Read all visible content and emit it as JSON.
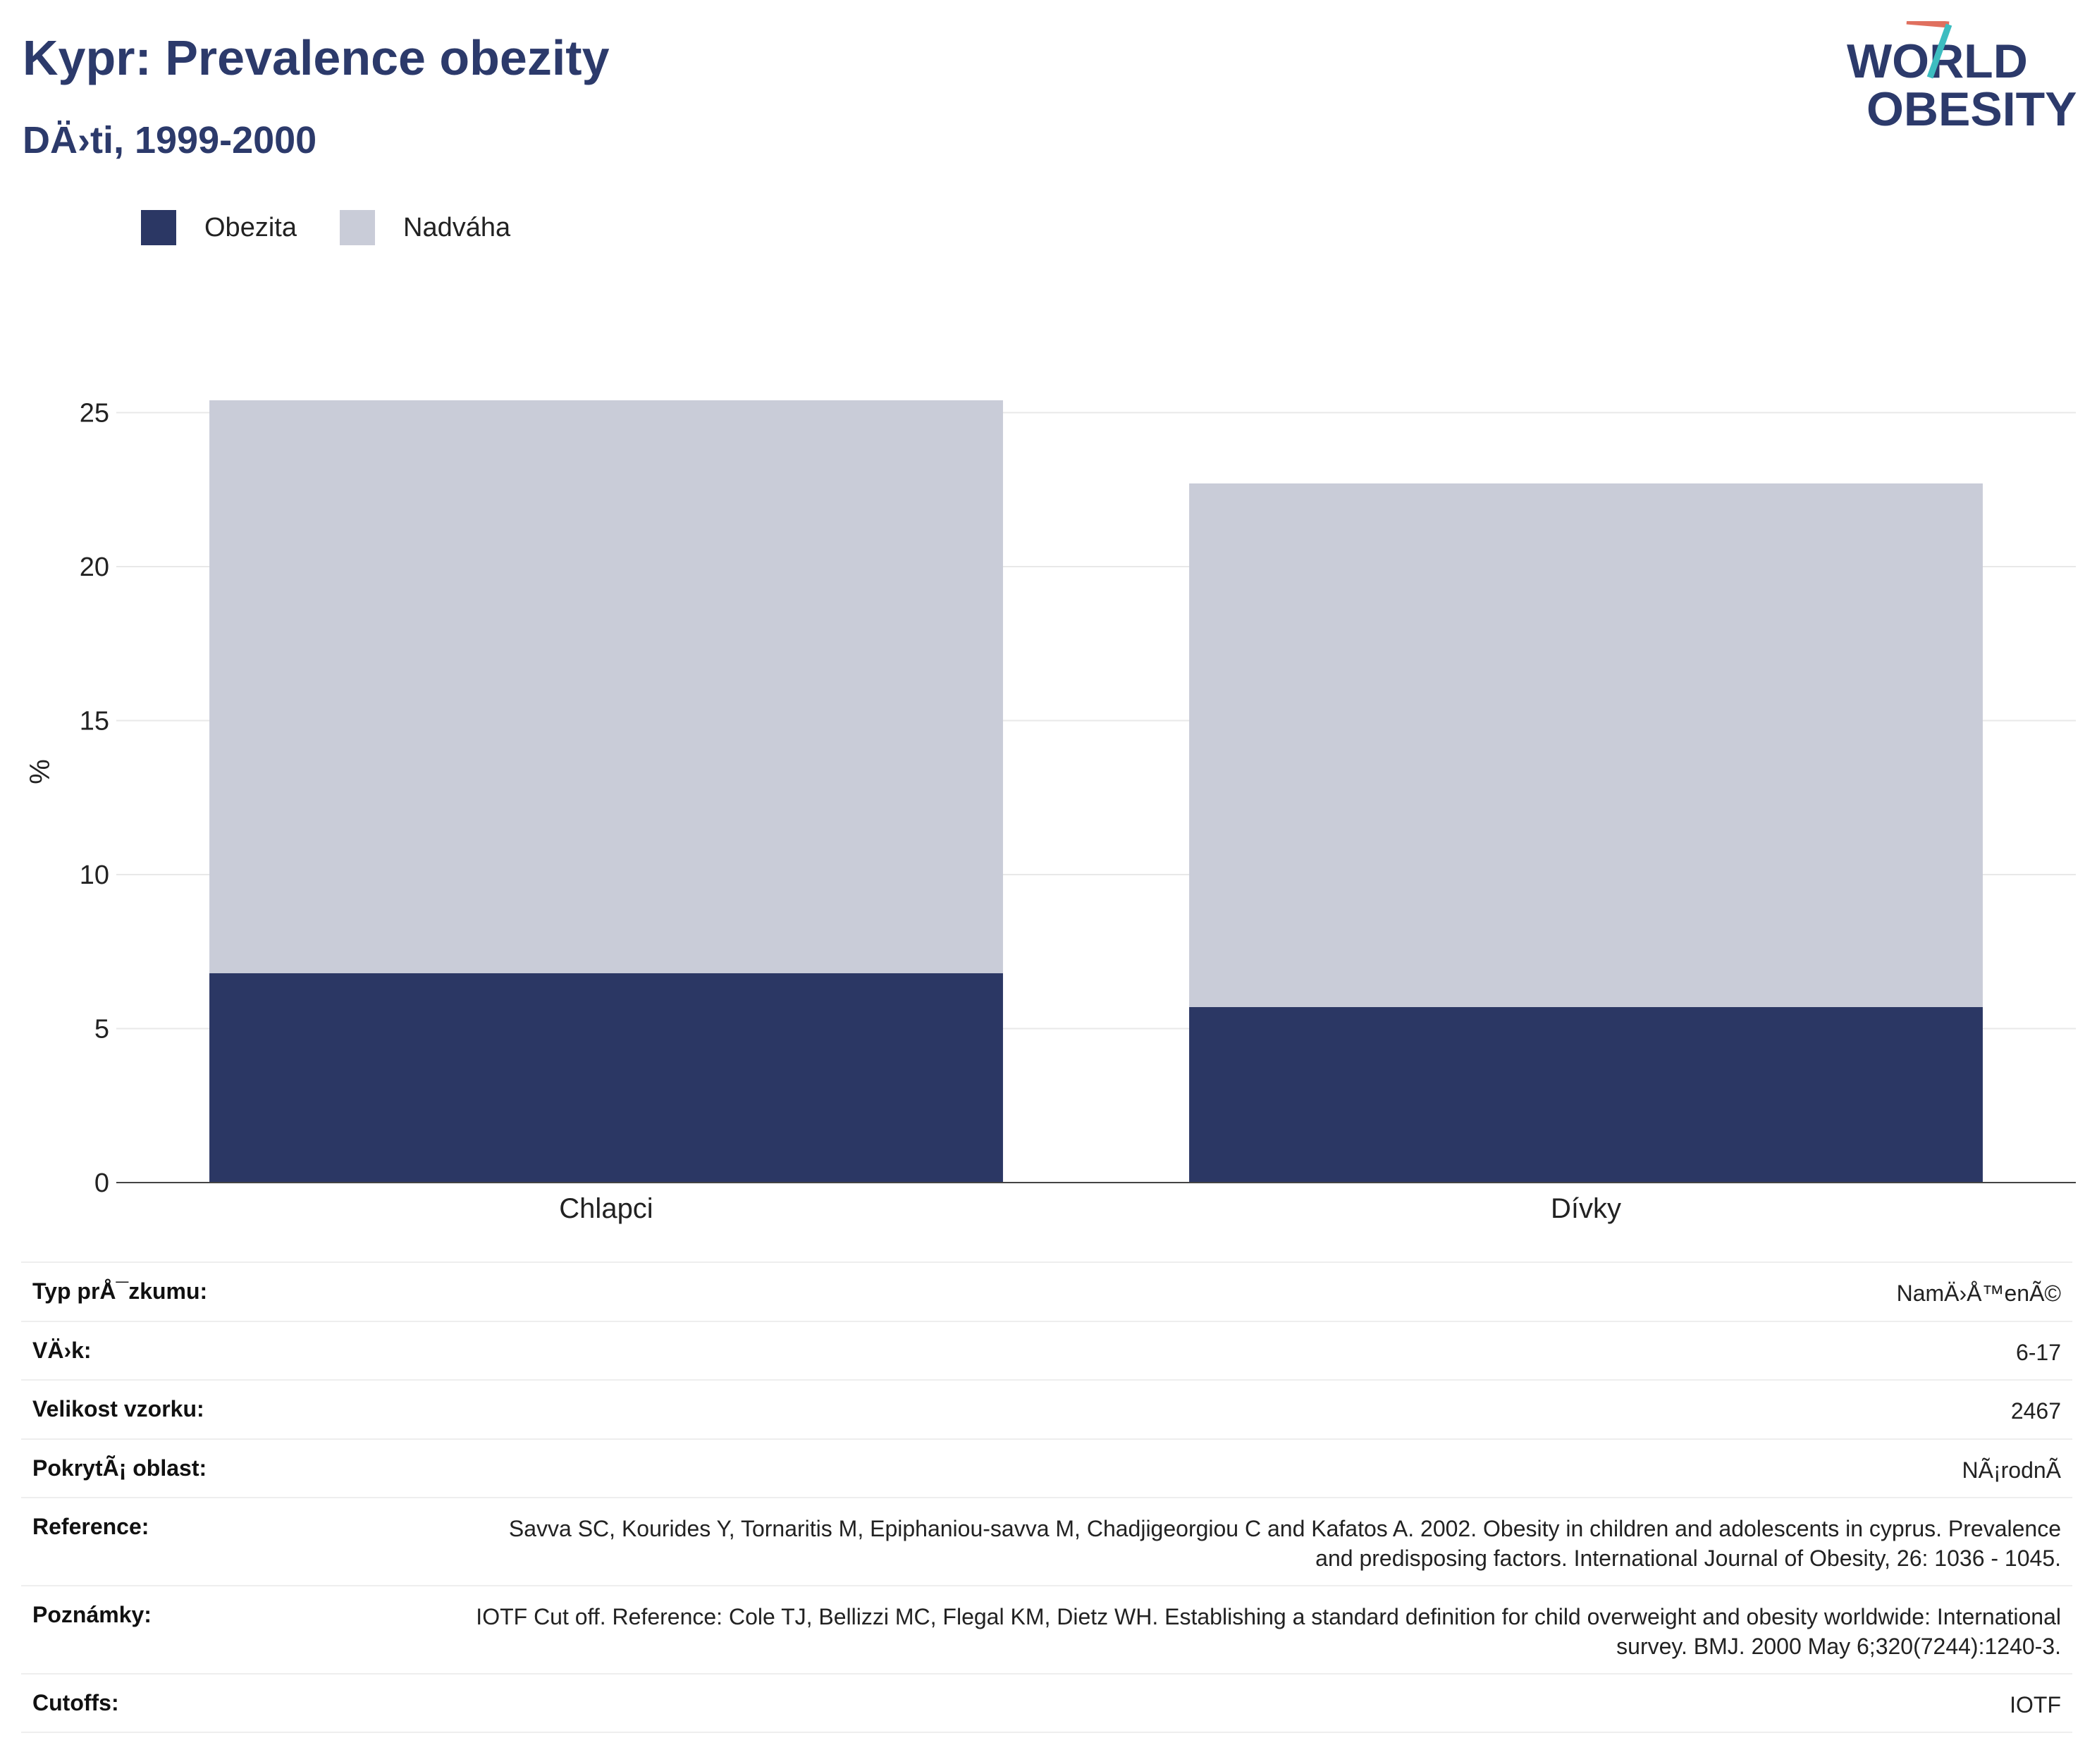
{
  "header": {
    "title": "Kypr: Prevalence obezity",
    "subtitle": "DÄ›ti, 1999-2000",
    "logo_line1": "WORLD",
    "logo_line2": "OBESITY"
  },
  "legend": {
    "items": [
      {
        "label": "Obezita",
        "color": "#2b3764"
      },
      {
        "label": "Nadváha",
        "color": "#c9ccd8"
      }
    ]
  },
  "chart_data": {
    "type": "bar",
    "stacked": true,
    "categories": [
      "Chlapci",
      "Dívky"
    ],
    "series": [
      {
        "name": "Obezita",
        "values": [
          6.8,
          5.7
        ],
        "color": "#2b3764"
      },
      {
        "name": "Nadváha",
        "values": [
          18.6,
          17.0
        ],
        "color": "#c9ccd8"
      }
    ],
    "ylabel": "%",
    "ylim": [
      0,
      25.4
    ],
    "yticks": [
      "0",
      "5",
      "10",
      "15",
      "20",
      "25"
    ],
    "grid": true,
    "legend_position": "top-left"
  },
  "info": {
    "rows": [
      {
        "label": "Typ prÅ¯zkumu:",
        "value": "NamÄ›Å™enÃ©"
      },
      {
        "label": "VÄ›k:",
        "value": "6-17"
      },
      {
        "label": "Velikost vzorku:",
        "value": "2467"
      },
      {
        "label": "PokrytÃ¡ oblast:",
        "value": "NÃ¡rodnÃ"
      },
      {
        "label": "Reference:",
        "value": "Savva SC, Kourides Y, Tornaritis M, Epiphaniou-savva M, Chadjigeorgiou C and Kafatos A. 2002. Obesity in children and adolescents in cyprus. Prevalence and predisposing factors. International Journal of Obesity, 26: 1036 - 1045."
      },
      {
        "label": "Poznámky:",
        "value": "IOTF Cut off. Reference: Cole TJ, Bellizzi MC, Flegal KM, Dietz WH. Establishing a standard definition for child overweight and obesity worldwide: International survey. BMJ. 2000 May 6;320(7244):1240-3."
      },
      {
        "label": "Cutoffs:",
        "value": "IOTF"
      }
    ]
  }
}
